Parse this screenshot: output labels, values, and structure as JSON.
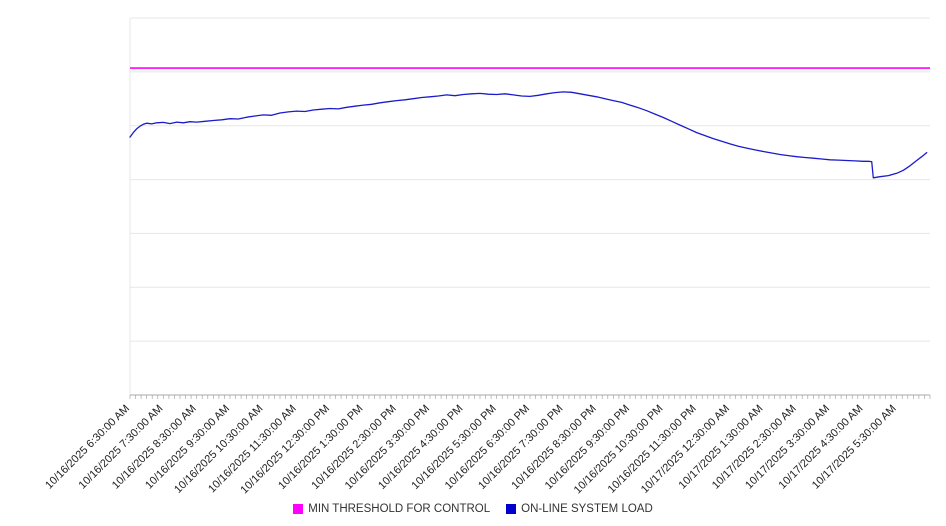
{
  "legend": {
    "items": [
      {
        "label": "MIN THRESHOLD FOR CONTROL",
        "color": "#ff00ff"
      },
      {
        "label": "ON-LINE SYSTEM LOAD",
        "color": "#0000cc"
      }
    ]
  },
  "chart_data": {
    "type": "line",
    "title": "",
    "xlabel": "",
    "ylabel": "",
    "ylim": [
      0,
      100
    ],
    "xlim_hours": [
      0,
      24
    ],
    "grid": true,
    "gridline_count": 8,
    "legend_position": "bottom-center",
    "x_unit": "hours from first tick (10/16/2025 6:30:00 AM)",
    "x_tick_labels": [
      "10/16/2025 6:30:00 AM",
      "10/16/2025 7:30:00 AM",
      "10/16/2025 8:30:00 AM",
      "10/16/2025 9:30:00 AM",
      "10/16/2025 10:30:00 AM",
      "10/16/2025 11:30:00 AM",
      "10/16/2025 12:30:00 PM",
      "10/16/2025 1:30:00 PM",
      "10/16/2025 2:30:00 PM",
      "10/16/2025 3:30:00 PM",
      "10/16/2025 4:30:00 PM",
      "10/16/2025 5:30:00 PM",
      "10/16/2025 6:30:00 PM",
      "10/16/2025 7:30:00 PM",
      "10/16/2025 8:30:00 PM",
      "10/16/2025 9:30:00 PM",
      "10/16/2025 10:30:00 PM",
      "10/16/2025 11:30:00 PM",
      "10/17/2025 12:30:00 AM",
      "10/17/2025 1:30:00 AM",
      "10/17/2025 2:30:00 AM",
      "10/17/2025 3:30:00 AM",
      "10/17/2025 4:30:00 AM",
      "10/17/2025 5:30:00 AM"
    ],
    "series": [
      {
        "name": "MIN THRESHOLD FOR CONTROL",
        "style": "threshold",
        "color": "#ff00ff",
        "value": 86.7
      },
      {
        "name": "ON-LINE SYSTEM LOAD",
        "style": "line",
        "color": "#1b1bcd",
        "points": [
          [
            0,
            68.4
          ],
          [
            0.1,
            69.6
          ],
          [
            0.2,
            70.6
          ],
          [
            0.3,
            71.3
          ],
          [
            0.4,
            71.8
          ],
          [
            0.5,
            72.1
          ],
          [
            0.65,
            71.9
          ],
          [
            0.8,
            72.2
          ],
          [
            1,
            72.3
          ],
          [
            1.2,
            72.0
          ],
          [
            1.4,
            72.4
          ],
          [
            1.6,
            72.2
          ],
          [
            1.8,
            72.5
          ],
          [
            2,
            72.4
          ],
          [
            2.25,
            72.6
          ],
          [
            2.5,
            72.8
          ],
          [
            2.75,
            73.0
          ],
          [
            3,
            73.3
          ],
          [
            3.25,
            73.2
          ],
          [
            3.5,
            73.7
          ],
          [
            3.75,
            74.0
          ],
          [
            4,
            74.3
          ],
          [
            4.25,
            74.2
          ],
          [
            4.5,
            74.8
          ],
          [
            4.75,
            75.1
          ],
          [
            5,
            75.3
          ],
          [
            5.25,
            75.2
          ],
          [
            5.5,
            75.6
          ],
          [
            5.75,
            75.8
          ],
          [
            6,
            76.0
          ],
          [
            6.25,
            75.9
          ],
          [
            6.5,
            76.3
          ],
          [
            6.75,
            76.6
          ],
          [
            7,
            76.9
          ],
          [
            7.25,
            77.1
          ],
          [
            7.5,
            77.5
          ],
          [
            7.75,
            77.8
          ],
          [
            8,
            78.1
          ],
          [
            8.25,
            78.3
          ],
          [
            8.5,
            78.6
          ],
          [
            8.75,
            78.9
          ],
          [
            9,
            79.1
          ],
          [
            9.25,
            79.3
          ],
          [
            9.5,
            79.6
          ],
          [
            9.75,
            79.4
          ],
          [
            10,
            79.7
          ],
          [
            10.25,
            79.9
          ],
          [
            10.5,
            80.0
          ],
          [
            10.75,
            79.8
          ],
          [
            11,
            79.7
          ],
          [
            11.25,
            79.9
          ],
          [
            11.5,
            79.6
          ],
          [
            11.75,
            79.3
          ],
          [
            12,
            79.2
          ],
          [
            12.25,
            79.5
          ],
          [
            12.5,
            79.9
          ],
          [
            12.75,
            80.2
          ],
          [
            13,
            80.4
          ],
          [
            13.25,
            80.3
          ],
          [
            13.5,
            79.9
          ],
          [
            13.75,
            79.5
          ],
          [
            14,
            79.1
          ],
          [
            14.25,
            78.6
          ],
          [
            14.5,
            78.1
          ],
          [
            14.75,
            77.6
          ],
          [
            15,
            76.9
          ],
          [
            15.25,
            76.2
          ],
          [
            15.5,
            75.4
          ],
          [
            15.75,
            74.5
          ],
          [
            16,
            73.6
          ],
          [
            16.25,
            72.6
          ],
          [
            16.5,
            71.6
          ],
          [
            16.75,
            70.6
          ],
          [
            17,
            69.6
          ],
          [
            17.25,
            68.8
          ],
          [
            17.5,
            68.0
          ],
          [
            17.75,
            67.3
          ],
          [
            18,
            66.6
          ],
          [
            18.25,
            66.0
          ],
          [
            18.5,
            65.5
          ],
          [
            18.75,
            65.0
          ],
          [
            19,
            64.6
          ],
          [
            19.25,
            64.2
          ],
          [
            19.5,
            63.8
          ],
          [
            19.75,
            63.5
          ],
          [
            20,
            63.2
          ],
          [
            20.25,
            63.0
          ],
          [
            20.5,
            62.8
          ],
          [
            20.75,
            62.6
          ],
          [
            21,
            62.4
          ],
          [
            21.25,
            62.3
          ],
          [
            21.5,
            62.2
          ],
          [
            21.75,
            62.1
          ],
          [
            22,
            62.0
          ],
          [
            22.15,
            62.0
          ],
          [
            22.25,
            61.9
          ],
          [
            22.3,
            57.6
          ],
          [
            22.5,
            57.9
          ],
          [
            22.75,
            58.2
          ],
          [
            23,
            58.8
          ],
          [
            23.2,
            59.6
          ],
          [
            23.4,
            60.8
          ],
          [
            23.6,
            62.2
          ],
          [
            23.75,
            63.2
          ],
          [
            23.9,
            64.3
          ]
        ]
      }
    ]
  }
}
